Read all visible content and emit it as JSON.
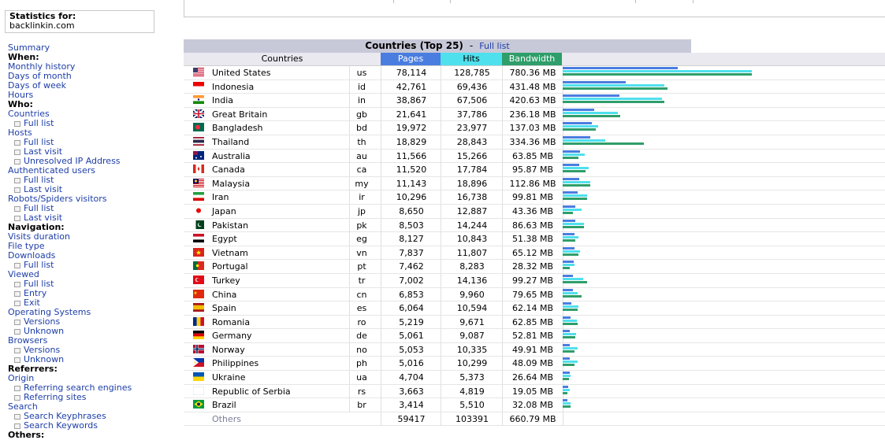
{
  "sidebar": {
    "stat_title": "Statistics for:",
    "stat_site": "backlinkin.com",
    "items": [
      {
        "type": "link",
        "label": "Summary"
      },
      {
        "type": "hdr",
        "label": "When:"
      },
      {
        "type": "link",
        "label": "Monthly history"
      },
      {
        "type": "link",
        "label": "Days of month"
      },
      {
        "type": "link",
        "label": "Days of week"
      },
      {
        "type": "link",
        "label": "Hours"
      },
      {
        "type": "hdr",
        "label": "Who:"
      },
      {
        "type": "link",
        "label": "Countries"
      },
      {
        "type": "sub",
        "label": "Full list"
      },
      {
        "type": "link",
        "label": "Hosts"
      },
      {
        "type": "sub",
        "label": "Full list"
      },
      {
        "type": "sub",
        "label": "Last visit"
      },
      {
        "type": "sub",
        "label": "Unresolved IP Address"
      },
      {
        "type": "link",
        "label": "Authenticated users"
      },
      {
        "type": "sub",
        "label": "Full list"
      },
      {
        "type": "sub",
        "label": "Last visit"
      },
      {
        "type": "link",
        "label": "Robots/Spiders visitors"
      },
      {
        "type": "sub",
        "label": "Full list"
      },
      {
        "type": "sub",
        "label": "Last visit"
      },
      {
        "type": "hdr",
        "label": "Navigation:"
      },
      {
        "type": "link",
        "label": "Visits duration"
      },
      {
        "type": "link",
        "label": "File type"
      },
      {
        "type": "link",
        "label": "Downloads"
      },
      {
        "type": "sub",
        "label": "Full list"
      },
      {
        "type": "link",
        "label": "Viewed"
      },
      {
        "type": "sub",
        "label": "Full list"
      },
      {
        "type": "sub",
        "label": "Entry"
      },
      {
        "type": "sub",
        "label": "Exit"
      },
      {
        "type": "link",
        "label": "Operating Systems"
      },
      {
        "type": "sub",
        "label": "Versions"
      },
      {
        "type": "sub",
        "label": "Unknown"
      },
      {
        "type": "link",
        "label": "Browsers"
      },
      {
        "type": "sub",
        "label": "Versions"
      },
      {
        "type": "sub",
        "label": "Unknown"
      },
      {
        "type": "hdr",
        "label": "Referrers:"
      },
      {
        "type": "link",
        "label": "Origin"
      },
      {
        "type": "sub",
        "label": "Referring search engines"
      },
      {
        "type": "sub",
        "label": "Referring sites"
      },
      {
        "type": "link",
        "label": "Search"
      },
      {
        "type": "sub",
        "label": "Search Keyphrases"
      },
      {
        "type": "sub",
        "label": "Search Keywords"
      },
      {
        "type": "hdr",
        "label": "Others:"
      }
    ]
  },
  "panel": {
    "title": "Countries (Top 25)",
    "separator": "-",
    "full_list": "Full list",
    "col_countries": "Countries",
    "col_pages": "Pages",
    "col_hits": "Hits",
    "col_bandwidth": "Bandwidth"
  },
  "colors": {
    "pages": "#4a7de0",
    "hits": "#4fe0ee",
    "bandwidth": "#2f9e6a",
    "link": "#1d3ea8"
  },
  "rows": [
    {
      "name": "United States",
      "code": "us",
      "pages": "78,114",
      "hits": "128,785",
      "bw": "780.36 MB",
      "p": 78114,
      "h": 128785,
      "b": 780.36,
      "flag": "us"
    },
    {
      "name": "Indonesia",
      "code": "id",
      "pages": "42,761",
      "hits": "69,436",
      "bw": "431.48 MB",
      "p": 42761,
      "h": 69436,
      "b": 431.48,
      "flag": "id"
    },
    {
      "name": "India",
      "code": "in",
      "pages": "38,867",
      "hits": "67,506",
      "bw": "420.63 MB",
      "p": 38867,
      "h": 67506,
      "b": 420.63,
      "flag": "in"
    },
    {
      "name": "Great Britain",
      "code": "gb",
      "pages": "21,641",
      "hits": "37,786",
      "bw": "236.18 MB",
      "p": 21641,
      "h": 37786,
      "b": 236.18,
      "flag": "gb"
    },
    {
      "name": "Bangladesh",
      "code": "bd",
      "pages": "19,972",
      "hits": "23,977",
      "bw": "137.03 MB",
      "p": 19972,
      "h": 23977,
      "b": 137.03,
      "flag": "bd"
    },
    {
      "name": "Thailand",
      "code": "th",
      "pages": "18,829",
      "hits": "28,843",
      "bw": "334.36 MB",
      "p": 18829,
      "h": 28843,
      "b": 334.36,
      "flag": "th"
    },
    {
      "name": "Australia",
      "code": "au",
      "pages": "11,566",
      "hits": "15,266",
      "bw": "63.85 MB",
      "p": 11566,
      "h": 15266,
      "b": 63.85,
      "flag": "au"
    },
    {
      "name": "Canada",
      "code": "ca",
      "pages": "11,520",
      "hits": "17,784",
      "bw": "95.87 MB",
      "p": 11520,
      "h": 17784,
      "b": 95.87,
      "flag": "ca"
    },
    {
      "name": "Malaysia",
      "code": "my",
      "pages": "11,143",
      "hits": "18,896",
      "bw": "112.86 MB",
      "p": 11143,
      "h": 18896,
      "b": 112.86,
      "flag": "my"
    },
    {
      "name": "Iran",
      "code": "ir",
      "pages": "10,296",
      "hits": "16,738",
      "bw": "99.81 MB",
      "p": 10296,
      "h": 16738,
      "b": 99.81,
      "flag": "ir"
    },
    {
      "name": "Japan",
      "code": "jp",
      "pages": "8,650",
      "hits": "12,887",
      "bw": "43.36 MB",
      "p": 8650,
      "h": 12887,
      "b": 43.36,
      "flag": "jp"
    },
    {
      "name": "Pakistan",
      "code": "pk",
      "pages": "8,503",
      "hits": "14,244",
      "bw": "86.63 MB",
      "p": 8503,
      "h": 14244,
      "b": 86.63,
      "flag": "pk"
    },
    {
      "name": "Egypt",
      "code": "eg",
      "pages": "8,127",
      "hits": "10,843",
      "bw": "51.38 MB",
      "p": 8127,
      "h": 10843,
      "b": 51.38,
      "flag": "eg"
    },
    {
      "name": "Vietnam",
      "code": "vn",
      "pages": "7,837",
      "hits": "11,807",
      "bw": "65.12 MB",
      "p": 7837,
      "h": 11807,
      "b": 65.12,
      "flag": "vn"
    },
    {
      "name": "Portugal",
      "code": "pt",
      "pages": "7,462",
      "hits": "8,283",
      "bw": "28.32 MB",
      "p": 7462,
      "h": 8283,
      "b": 28.32,
      "flag": "pt"
    },
    {
      "name": "Turkey",
      "code": "tr",
      "pages": "7,002",
      "hits": "14,136",
      "bw": "99.27 MB",
      "p": 7002,
      "h": 14136,
      "b": 99.27,
      "flag": "tr"
    },
    {
      "name": "China",
      "code": "cn",
      "pages": "6,853",
      "hits": "9,960",
      "bw": "79.65 MB",
      "p": 6853,
      "h": 9960,
      "b": 79.65,
      "flag": "cn"
    },
    {
      "name": "Spain",
      "code": "es",
      "pages": "6,064",
      "hits": "10,594",
      "bw": "62.14 MB",
      "p": 6064,
      "h": 10594,
      "b": 62.14,
      "flag": "es"
    },
    {
      "name": "Romania",
      "code": "ro",
      "pages": "5,219",
      "hits": "9,671",
      "bw": "62.85 MB",
      "p": 5219,
      "h": 9671,
      "b": 62.85,
      "flag": "ro"
    },
    {
      "name": "Germany",
      "code": "de",
      "pages": "5,061",
      "hits": "9,087",
      "bw": "52.81 MB",
      "p": 5061,
      "h": 9087,
      "b": 52.81,
      "flag": "de"
    },
    {
      "name": "Norway",
      "code": "no",
      "pages": "5,053",
      "hits": "10,335",
      "bw": "49.91 MB",
      "p": 5053,
      "h": 10335,
      "b": 49.91,
      "flag": "no"
    },
    {
      "name": "Philippines",
      "code": "ph",
      "pages": "5,016",
      "hits": "10,299",
      "bw": "48.09 MB",
      "p": 5016,
      "h": 10299,
      "b": 48.09,
      "flag": "ph"
    },
    {
      "name": "Ukraine",
      "code": "ua",
      "pages": "4,704",
      "hits": "5,373",
      "bw": "26.64 MB",
      "p": 4704,
      "h": 5373,
      "b": 26.64,
      "flag": "ua"
    },
    {
      "name": "Republic of Serbia",
      "code": "rs",
      "pages": "3,663",
      "hits": "4,819",
      "bw": "19.05 MB",
      "p": 3663,
      "h": 4819,
      "b": 19.05,
      "flag": "rs"
    },
    {
      "name": "Brazil",
      "code": "br",
      "pages": "3,414",
      "hits": "5,510",
      "bw": "32.08 MB",
      "p": 3414,
      "h": 5510,
      "b": 32.08,
      "flag": "br"
    }
  ],
  "others": {
    "name": "Others",
    "pages": "59417",
    "hits": "103391",
    "bw": "660.79 MB"
  }
}
